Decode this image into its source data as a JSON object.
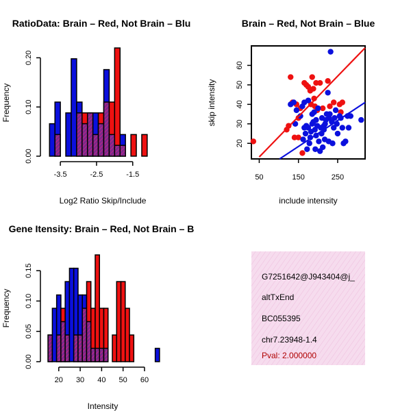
{
  "colors": {
    "red": "#ee1111",
    "blue": "#0b10dd",
    "overlap": "#8a2a8a",
    "info_bg": "#f4d6ea"
  },
  "chart_data": [
    {
      "id": "hist-ratio",
      "type": "bar",
      "title": "RatioData: Brain – Red, Not Brain – Blu",
      "xlabel": "Log2 Ratio Skip/Include",
      "ylabel": "Frequency",
      "xlim": [
        -3.9,
        -0.7
      ],
      "ylim": [
        0,
        0.22
      ],
      "xticks": [
        -3.5,
        -2.5,
        -1.5
      ],
      "xtick_labels": [
        "-3.5",
        "-2.5",
        "-1.5"
      ],
      "yticks": [
        0.0,
        0.1,
        0.2
      ],
      "ytick_labels": [
        "0.00",
        "0.10",
        "0.20"
      ],
      "bin_edges": [
        -3.8,
        -3.65,
        -3.5,
        -3.35,
        -3.2,
        -3.05,
        -2.9,
        -2.75,
        -2.6,
        -2.45,
        -2.3,
        -2.15,
        -2.0,
        -1.85,
        -1.7,
        -1.55,
        -1.4,
        -1.25,
        -1.1,
        -0.95,
        -0.8
      ],
      "series": [
        {
          "name": "Not Brain",
          "color": "blue",
          "values": [
            0.066,
            0.11,
            0,
            0.088,
            0.198,
            0.11,
            0.066,
            0.088,
            0.088,
            0.066,
            0.176,
            0.044,
            0.022,
            0.044,
            0,
            0,
            0,
            0,
            0,
            0
          ]
        },
        {
          "name": "Brain",
          "color": "red",
          "values": [
            0,
            0.044,
            0,
            0,
            0,
            0.088,
            0.088,
            0.088,
            0.044,
            0.088,
            0.11,
            0.11,
            0.22,
            0.022,
            0,
            0.044,
            0,
            0.044,
            0,
            0
          ]
        }
      ]
    },
    {
      "id": "scatter-intensity",
      "type": "scatter",
      "title": "Brain – Red, Not Brain – Blue",
      "xlabel": "include intensity",
      "ylabel": "skip intensity",
      "xlim": [
        30,
        320
      ],
      "ylim": [
        12,
        70
      ],
      "xticks": [
        50,
        150,
        250
      ],
      "xtick_labels": [
        "50",
        "150",
        "250"
      ],
      "yticks": [
        20,
        30,
        40,
        50,
        60
      ],
      "ytick_labels": [
        "20",
        "30",
        "40",
        "50",
        "60"
      ],
      "series": [
        {
          "name": "Brain",
          "color": "red",
          "points": [
            [
              35,
              21
            ],
            [
              120,
              27
            ],
            [
              130,
              54
            ],
            [
              135,
              41
            ],
            [
              140,
              23
            ],
            [
              145,
              40
            ],
            [
              150,
              23
            ],
            [
              155,
              38
            ],
            [
              160,
              15
            ],
            [
              165,
              51
            ],
            [
              170,
              50
            ],
            [
              175,
              49
            ],
            [
              180,
              47
            ],
            [
              182,
              40
            ],
            [
              185,
              54
            ],
            [
              188,
              48
            ],
            [
              190,
              43
            ],
            [
              192,
              39
            ],
            [
              195,
              51
            ],
            [
              198,
              37
            ],
            [
              205,
              51
            ],
            [
              212,
              38
            ],
            [
              225,
              52
            ],
            [
              230,
              39
            ],
            [
              240,
              41
            ],
            [
              255,
              40
            ],
            [
              258,
              36
            ],
            [
              262,
              41
            ],
            [
              125,
              29
            ],
            [
              150,
              33
            ]
          ],
          "fit": [
            [
              50,
              13
            ],
            [
              320,
              69
            ]
          ]
        },
        {
          "name": "Not Brain",
          "color": "blue",
          "points": [
            [
              130,
              40
            ],
            [
              138,
              41
            ],
            [
              142,
              30
            ],
            [
              145,
              37
            ],
            [
              155,
              34
            ],
            [
              160,
              39
            ],
            [
              162,
              22
            ],
            [
              165,
              28
            ],
            [
              168,
              25
            ],
            [
              170,
              29
            ],
            [
              172,
              17
            ],
            [
              175,
              28
            ],
            [
              178,
              20
            ],
            [
              180,
              23
            ],
            [
              182,
              26
            ],
            [
              185,
              30
            ],
            [
              188,
              31
            ],
            [
              190,
              36
            ],
            [
              192,
              27
            ],
            [
              193,
              17
            ],
            [
              195,
              24
            ],
            [
              198,
              29
            ],
            [
              200,
              38
            ],
            [
              202,
              21
            ],
            [
              205,
              16
            ],
            [
              207,
              28
            ],
            [
              209,
              25
            ],
            [
              210,
              33
            ],
            [
              212,
              18
            ],
            [
              215,
              27
            ],
            [
              217,
              22
            ],
            [
              218,
              30
            ],
            [
              220,
              32
            ],
            [
              222,
              35
            ],
            [
              225,
              46
            ],
            [
              227,
              21
            ],
            [
              228,
              33
            ],
            [
              230,
              35
            ],
            [
              232,
              67
            ],
            [
              235,
              31
            ],
            [
              237,
              20
            ],
            [
              240,
              28
            ],
            [
              242,
              33
            ],
            [
              245,
              37
            ],
            [
              248,
              30
            ],
            [
              250,
              25
            ],
            [
              255,
              34
            ],
            [
              258,
              33
            ],
            [
              262,
              28
            ],
            [
              265,
              20
            ],
            [
              270,
              21
            ],
            [
              275,
              34
            ],
            [
              278,
              28
            ],
            [
              283,
              34
            ],
            [
              310,
              32
            ],
            [
              165,
              41
            ],
            [
              175,
              42
            ],
            [
              185,
              35
            ],
            [
              215,
              29
            ],
            [
              195,
              32
            ]
          ],
          "fit": [
            [
              102,
              12
            ],
            [
              320,
              41
            ]
          ]
        }
      ]
    },
    {
      "id": "hist-gene",
      "type": "bar",
      "title": "Gene Itensity: Brain – Red, Not Brain – B",
      "xlabel": "Intensity",
      "ylabel": "Frequency",
      "xlim": [
        14,
        68
      ],
      "ylim": [
        0,
        0.175
      ],
      "xticks": [
        20,
        30,
        40,
        50,
        60
      ],
      "xtick_labels": [
        "20",
        "30",
        "40",
        "50",
        "60"
      ],
      "yticks": [
        0.0,
        0.05,
        0.1,
        0.15
      ],
      "ytick_labels": [
        "0.00",
        "0.05",
        "0.10",
        "0.15"
      ],
      "bin_edges": [
        15,
        17,
        19,
        21,
        23,
        25,
        27,
        29,
        31,
        33,
        35,
        37,
        39,
        41,
        43,
        45,
        47,
        49,
        51,
        53,
        55,
        57,
        59,
        61,
        63,
        65,
        67
      ],
      "series": [
        {
          "name": "Not Brain",
          "color": "blue",
          "values": [
            0.044,
            0.088,
            0.11,
            0.066,
            0.132,
            0.154,
            0.154,
            0.11,
            0.11,
            0.066,
            0.022,
            0.022,
            0.022,
            0.022,
            0,
            0,
            0,
            0,
            0,
            0,
            0,
            0,
            0,
            0,
            0,
            0.022
          ]
        },
        {
          "name": "Brain",
          "color": "red",
          "values": [
            0.044,
            0,
            0.044,
            0.088,
            0.044,
            0,
            0.044,
            0.044,
            0.088,
            0.132,
            0.088,
            0.176,
            0.088,
            0.088,
            0,
            0.044,
            0.132,
            0.132,
            0.088,
            0.044,
            0,
            0,
            0,
            0,
            0,
            0
          ]
        }
      ]
    }
  ],
  "info_box": {
    "id_text": "G7251642@J943404@j_",
    "event_type": "altTxEnd",
    "accession": "BC055395",
    "location": "chr7.23948-1.4",
    "pval": "Pval: 2.000000"
  }
}
